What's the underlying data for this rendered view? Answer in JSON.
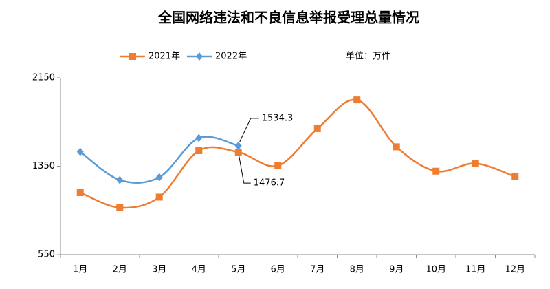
{
  "chart_data": {
    "type": "line",
    "title": "全国网络违法和不良信息举报受理总量情况",
    "unit_note": "单位：万件",
    "categories": [
      "1月",
      "2月",
      "3月",
      "4月",
      "5月",
      "6月",
      "7月",
      "8月",
      "9月",
      "10月",
      "11月",
      "12月"
    ],
    "series": [
      {
        "name": "2021年",
        "color": "#ed7d31",
        "values": [
          1110,
          975,
          1070,
          1490,
          1476.7,
          1355,
          1690,
          1950,
          1525,
          1305,
          1375,
          1255
        ]
      },
      {
        "name": "2022年",
        "color": "#5b9bd5",
        "values": [
          1480,
          1225,
          1250,
          1605,
          1534.3,
          null,
          null,
          null,
          null,
          null,
          null,
          null
        ]
      }
    ],
    "annotations": [
      {
        "text": "1534.3",
        "series": 1,
        "index": 4
      },
      {
        "text": "1476.7",
        "series": 0,
        "index": 4
      }
    ],
    "ylim": [
      550,
      2150
    ],
    "yticks": [
      550,
      1350,
      2150
    ],
    "grid": false,
    "legend": "top"
  }
}
